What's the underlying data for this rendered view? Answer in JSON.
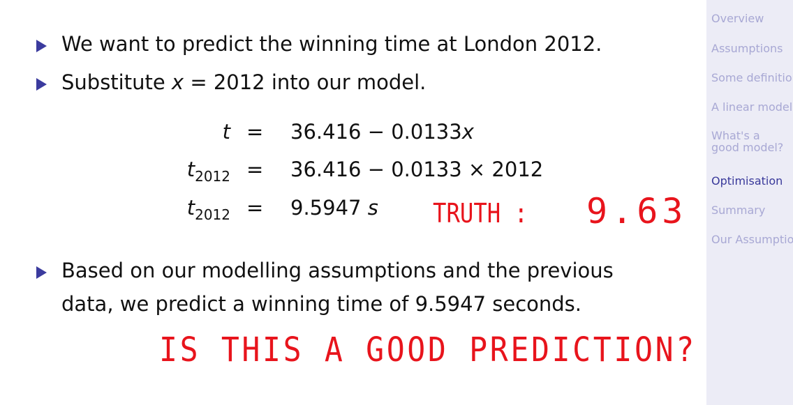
{
  "slide": {
    "bullets": [
      {
        "text": "We want to predict the winning time at London 2012."
      },
      {
        "before": "Substitute",
        "var": "x",
        "after": "= 2012 into our model."
      },
      {
        "lines": [
          "Based on our modelling assumptions and the previous",
          "data, we predict a winning time of 9.5947 seconds."
        ]
      }
    ],
    "equations": [
      {
        "lhs": "t",
        "rel": "=",
        "rhs": "36.416 − 0.0133",
        "rhs_var": "x"
      },
      {
        "lhs": "t",
        "lhs_sub": "2012",
        "rel": "=",
        "rhs": "36.416 − 0.0133 × 2012"
      },
      {
        "lhs": "t",
        "lhs_sub": "2012",
        "rel": "=",
        "rhs": "9.5947",
        "rhs_var": "s"
      }
    ],
    "annotations": {
      "truth_label": "TRUTH :",
      "truth_value": "9.63",
      "question": "IS THIS A GOOD PREDICTION?"
    },
    "sidebar": [
      "Overview",
      "Assumptions",
      "Some definitions",
      "A linear model",
      "What's a good model?",
      "Optimisation",
      "Summary",
      "Our Assumptions"
    ]
  }
}
